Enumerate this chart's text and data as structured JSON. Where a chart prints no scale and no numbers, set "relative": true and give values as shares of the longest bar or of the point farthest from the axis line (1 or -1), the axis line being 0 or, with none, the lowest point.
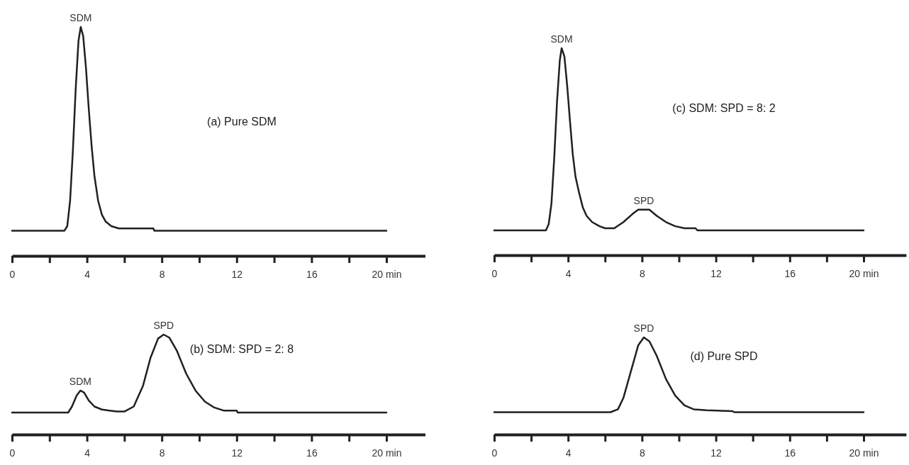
{
  "chart_data": [
    {
      "type": "line",
      "relative": true,
      "xlim": [
        0,
        22.6
      ],
      "xticks": [
        0,
        {
          "value": 2,
          "label": null
        },
        4,
        {
          "value": 6,
          "label": null
        },
        8,
        {
          "value": 10,
          "label": null
        },
        12,
        {
          "value": 14,
          "label": null
        },
        16,
        {
          "value": 18,
          "label": null
        },
        {
          "value": 20,
          "label": "20 min"
        }
      ],
      "tick_labels": "x",
      "series": [
        {
          "color": "#231f20",
          "x": [
            0,
            2.8,
            2.95,
            3.1,
            3.25,
            3.4,
            3.55,
            3.67,
            3.8,
            3.95,
            4.1,
            4.25,
            4.4,
            4.6,
            4.8,
            5.0,
            5.3,
            5.7,
            6.0,
            7.55,
            7.6,
            20
          ],
          "values": [
            0.11,
            0.11,
            0.13,
            0.24,
            0.46,
            0.73,
            0.94,
            1,
            0.96,
            0.82,
            0.64,
            0.48,
            0.35,
            0.24,
            0.18,
            0.15,
            0.13,
            0.12,
            0.12,
            0.12,
            0.11,
            0.11
          ]
        }
      ],
      "annotations": [
        {
          "text": "SDM",
          "x": 3.67,
          "y": 1
        },
        "(a) Pure SDM"
      ]
    },
    {
      "type": "line",
      "relative": true,
      "xlim": [
        0,
        22.3
      ],
      "xticks": [
        0,
        {
          "value": 2,
          "label": null
        },
        4,
        {
          "value": 6,
          "label": null
        },
        8,
        {
          "value": 10,
          "label": null
        },
        12,
        {
          "value": 14,
          "label": null
        },
        16,
        {
          "value": 18,
          "label": null
        },
        {
          "value": 20,
          "label": "20 min"
        }
      ],
      "tick_labels": "x",
      "series": [
        {
          "color": "#231f20",
          "x": [
            0,
            2.8,
            2.95,
            3.1,
            3.25,
            3.4,
            3.55,
            3.65,
            3.8,
            3.95,
            4.1,
            4.25,
            4.4,
            4.6,
            4.8,
            5.0,
            5.3,
            5.7,
            6.0,
            6.5,
            7.0,
            7.5,
            7.8,
            8.4,
            8.8,
            9.3,
            9.8,
            10.3,
            10.9,
            11.0,
            20
          ],
          "values": [
            0.12,
            0.12,
            0.15,
            0.25,
            0.47,
            0.74,
            0.94,
            1,
            0.96,
            0.82,
            0.65,
            0.49,
            0.38,
            0.3,
            0.23,
            0.19,
            0.16,
            0.14,
            0.13,
            0.13,
            0.16,
            0.2,
            0.22,
            0.22,
            0.19,
            0.16,
            0.14,
            0.13,
            0.13,
            0.12,
            0.12
          ]
        }
      ],
      "annotations": [
        {
          "text": "SDM",
          "x": 3.65,
          "y": 1
        },
        {
          "text": "SPD",
          "x": 8.1,
          "y": 0.22
        },
        "(c) SDM: SPD = 8: 2"
      ]
    },
    {
      "type": "line",
      "relative": true,
      "xlim": [
        0,
        22.6
      ],
      "xticks": [
        0,
        {
          "value": 2,
          "label": null
        },
        4,
        {
          "value": 6,
          "label": null
        },
        8,
        {
          "value": 10,
          "label": null
        },
        12,
        {
          "value": 14,
          "label": null
        },
        16,
        {
          "value": 18,
          "label": null
        },
        {
          "value": 20,
          "label": "20 min"
        }
      ],
      "tick_labels": "x",
      "series": [
        {
          "color": "#231f20",
          "x": [
            0,
            3.0,
            3.2,
            3.45,
            3.65,
            3.85,
            4.1,
            4.4,
            4.8,
            5.2,
            5.6,
            6.0,
            6.5,
            7.0,
            7.4,
            7.8,
            8.1,
            8.4,
            8.8,
            9.3,
            9.8,
            10.3,
            10.8,
            11.3,
            12.0,
            12.05,
            20
          ],
          "values": [
            0.22,
            0.22,
            0.28,
            0.39,
            0.44,
            0.42,
            0.34,
            0.28,
            0.25,
            0.24,
            0.23,
            0.23,
            0.28,
            0.49,
            0.77,
            0.96,
            1,
            0.97,
            0.84,
            0.61,
            0.44,
            0.33,
            0.27,
            0.24,
            0.24,
            0.22,
            0.22
          ]
        }
      ],
      "annotations": [
        {
          "text": "SDM",
          "x": 3.65,
          "y": 0.44
        },
        {
          "text": "SPD",
          "x": 8.1,
          "y": 1
        },
        "(b) SDM: SPD = 2: 8"
      ]
    },
    {
      "type": "line",
      "relative": true,
      "xlim": [
        0,
        22.3
      ],
      "xticks": [
        0,
        {
          "value": 2,
          "label": null
        },
        4,
        {
          "value": 6,
          "label": null
        },
        8,
        {
          "value": 10,
          "label": null
        },
        12,
        {
          "value": 14,
          "label": null
        },
        16,
        {
          "value": 18,
          "label": null
        },
        {
          "value": 20,
          "label": "20 min"
        }
      ],
      "tick_labels": "x",
      "series": [
        {
          "color": "#231f20",
          "x": [
            0,
            6.3,
            6.7,
            7.0,
            7.4,
            7.8,
            8.1,
            8.4,
            8.8,
            9.3,
            9.8,
            10.3,
            10.8,
            11.5,
            12.9,
            13.0,
            20
          ],
          "values": [
            0.23,
            0.23,
            0.26,
            0.38,
            0.65,
            0.92,
            1,
            0.96,
            0.81,
            0.57,
            0.4,
            0.3,
            0.26,
            0.25,
            0.24,
            0.23,
            0.23
          ]
        }
      ],
      "annotations": [
        {
          "text": "SPD",
          "x": 8.1,
          "y": 1
        },
        "(d) Pure SPD"
      ]
    }
  ]
}
